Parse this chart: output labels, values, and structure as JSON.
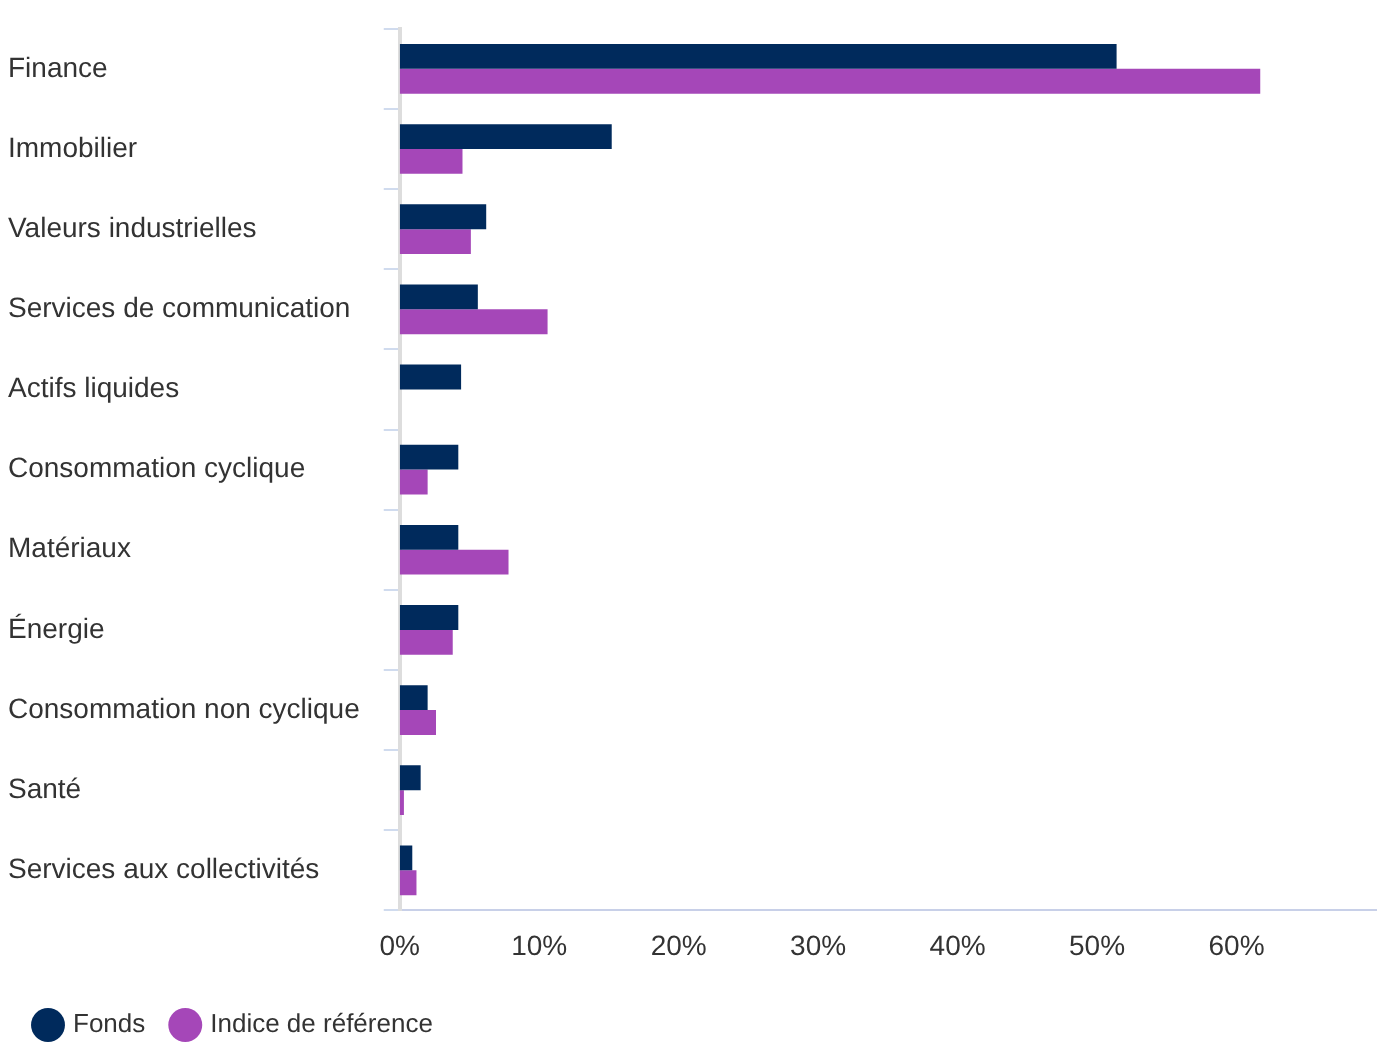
{
  "chart_data": {
    "type": "bar",
    "orientation": "horizontal",
    "categories": [
      "Finance",
      "Immobilier",
      "Valeurs industrielles",
      "Services de communication",
      "Actifs liquides",
      "Consommation cyclique",
      "Matériaux",
      "Énergie",
      "Consommation non cyclique",
      "Santé",
      "Services aux collectivités"
    ],
    "series": [
      {
        "name": "Fonds",
        "color": "#002a5c",
        "values": [
          51.4,
          15.2,
          6.2,
          5.6,
          4.4,
          4.2,
          4.2,
          4.2,
          2.0,
          1.5,
          0.9
        ]
      },
      {
        "name": "Indice de référence",
        "color": "#a547b8",
        "values": [
          61.7,
          4.5,
          5.1,
          10.6,
          null,
          2.0,
          7.8,
          3.8,
          2.6,
          0.3,
          1.2
        ]
      }
    ],
    "xlim": [
      0,
      70
    ],
    "xticks": [
      {
        "value": 0,
        "label": "0%"
      },
      {
        "value": 10,
        "label": "10%"
      },
      {
        "value": 20,
        "label": "20%"
      },
      {
        "value": 30,
        "label": "30%"
      },
      {
        "value": 40,
        "label": "40%"
      },
      {
        "value": 50,
        "label": "50%"
      },
      {
        "value": 60,
        "label": "60%"
      }
    ],
    "grid": false,
    "legend": "bottom left"
  }
}
